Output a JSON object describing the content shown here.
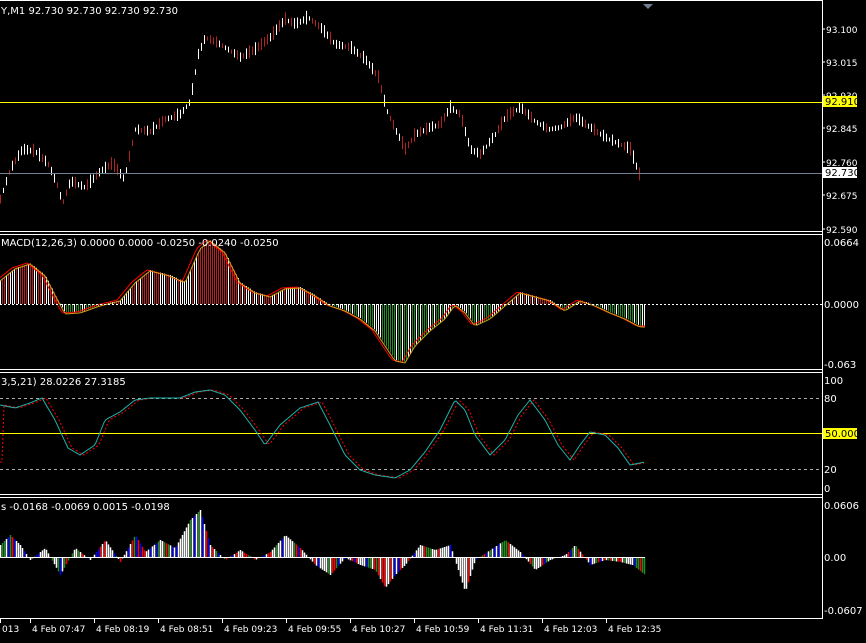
{
  "main_panel": {
    "header": "Y,M1  92.730 92.730 92.730 92.730",
    "price_ticks": [
      "93.100",
      "93.015",
      "92.930",
      "92.845",
      "92.760",
      "92.675",
      "92.590"
    ],
    "hline_label": "92.910",
    "bid_label": "92.730"
  },
  "macd_panel": {
    "header": "MACD(12,26,3) 0.0000 0.0000 -0.0250 -0.0240 -0.0250",
    "ticks": [
      "0.0664",
      "0.0000",
      "-0.063"
    ]
  },
  "stoch_panel": {
    "header": "3,5,21) 28.0226 27.3185",
    "ticks": [
      "100",
      "80",
      "20",
      "0"
    ],
    "level_label": "50.000"
  },
  "osc_panel": {
    "header": "s -0.0168 -0.0069 0.0015 -0.0198",
    "ticks": [
      "0.0606",
      "0.00",
      "-0.0607"
    ]
  },
  "time_axis": {
    "labels": [
      "013",
      "4 Feb 07:47",
      "4 Feb 08:19",
      "4 Feb 08:51",
      "4 Feb 09:23",
      "4 Feb 09:55",
      "4 Feb 10:27",
      "4 Feb 10:59",
      "4 Feb 11:31",
      "4 Feb 12:03",
      "4 Feb 12:35"
    ]
  },
  "colors": {
    "background": "#000000",
    "axis_text": "#ffffff",
    "level_line": "#ffff00",
    "bid_line": "#708090",
    "bar": "#ffffff",
    "bar_down": "#b22222",
    "macd_pos": "#b22222",
    "macd_neg": "#228b22",
    "stoch_main": "#20b2aa",
    "stoch_signal": "#ff0000",
    "osc_up": "#ffffff",
    "osc_green": "#228b22",
    "osc_red": "#ff0000",
    "osc_blue": "#0000ff"
  }
}
